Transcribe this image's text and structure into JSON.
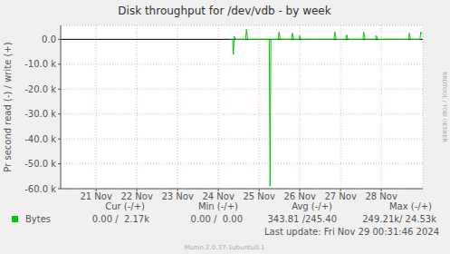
{
  "chart_data": {
    "type": "line",
    "title": "Disk throughput for /dev/vdb - by week",
    "y_label": "Pr second read (-) / write (+)",
    "x": [
      24.3,
      24.35,
      24.37,
      24.39,
      24.42,
      24.67,
      24.69,
      24.72,
      25.25,
      25.27,
      25.29,
      25.47,
      25.49,
      25.52,
      25.8,
      25.82,
      25.85,
      25.98,
      26.0,
      26.03,
      26.84,
      26.86,
      26.89,
      27.13,
      27.15,
      27.18,
      27.55,
      27.57,
      27.6,
      27.86,
      27.88,
      27.91,
      28.67,
      28.69,
      28.72,
      28.95,
      28.97,
      29.0
    ],
    "series": [
      {
        "name": "Bytes",
        "color": "#00cc00",
        "values": [
          0,
          0,
          -6000,
          1200,
          0,
          0,
          4000,
          0,
          0,
          -59000,
          0,
          0,
          3000,
          0,
          0,
          2500,
          0,
          0,
          1500,
          0,
          0,
          3000,
          0,
          0,
          1800,
          0,
          0,
          3000,
          0,
          0,
          1500,
          0,
          0,
          2500,
          0,
          0,
          3000,
          2170
        ]
      }
    ],
    "xlim": [
      20.13,
      29.02
    ],
    "xticks": [
      {
        "value": 21,
        "label": "21 Nov"
      },
      {
        "value": 22,
        "label": "22 Nov"
      },
      {
        "value": 23,
        "label": "23 Nov"
      },
      {
        "value": 24,
        "label": "24 Nov"
      },
      {
        "value": 25,
        "label": "25 Nov"
      },
      {
        "value": 26,
        "label": "26 Nov"
      },
      {
        "value": 27,
        "label": "27 Nov"
      },
      {
        "value": 28,
        "label": "28 Nov"
      }
    ],
    "ylim": [
      -60000,
      5600
    ],
    "yticks": [
      {
        "value": -60000,
        "label": "-60.0 k"
      },
      {
        "value": -50000,
        "label": "-50.0 k"
      },
      {
        "value": -40000,
        "label": "-40.0 k"
      },
      {
        "value": -30000,
        "label": "-30.0 k"
      },
      {
        "value": -20000,
        "label": "-20.0 k"
      },
      {
        "value": -10000,
        "label": "-10.0 k"
      },
      {
        "value": 0,
        "label": "0.0"
      }
    ],
    "grid": true,
    "summary": {
      "headers": [
        "Cur (-/+)",
        "Min (-/+)",
        "Avg (-/+)",
        "Max (-/+)"
      ],
      "cells": [
        "0.00 /  2.17k",
        "0.00 /  0.00",
        "343.81 /245.40",
        "249.21k/ 24.53k"
      ]
    },
    "last_update": "Last update: Fri Nov 29 00:31:46 2024",
    "credit": "Munin 2.0.37-1ubuntu0.1",
    "watermark": "RRDTOOL / TOBI OETIKER"
  }
}
